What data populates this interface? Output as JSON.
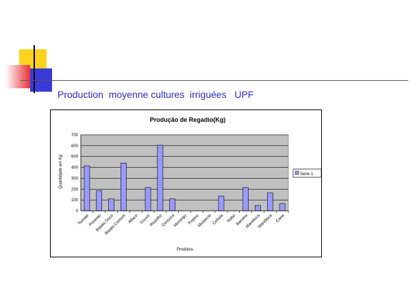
{
  "slide": {
    "title": "Production  moyenne cultures  irriguées   UPF",
    "colors": {
      "title": "#2b2bd0",
      "deco_yellow": "#ffd21f",
      "deco_red": "#e8333a",
      "deco_blue": "#3a3ad8"
    }
  },
  "chart_data": {
    "type": "bar",
    "title": "Produção de Regadio(Kg)",
    "xlabel": "Produtos",
    "ylabel": "Quantidade em Kg",
    "ylim": [
      0,
      700
    ],
    "yticks": [
      0,
      100,
      200,
      300,
      400,
      500,
      600,
      700
    ],
    "grid": true,
    "legend_position": "right",
    "plot_background": "#c0c0c0",
    "bar_color": "#9999ff",
    "categories": [
      "Tomate",
      "Pimento",
      "Batata Doce",
      "Batata Comum",
      "Alface",
      "Couve",
      "Repolho",
      "Cenoura",
      "Morango",
      "Pepino",
      "Melancia",
      "Cebola",
      "Nabo",
      "Banana",
      "Mandioca",
      "Mandioca",
      "Cana"
    ],
    "series": [
      {
        "name": "Série 1",
        "values": [
          415,
          185,
          110,
          440,
          0,
          215,
          605,
          110,
          0,
          0,
          0,
          135,
          0,
          215,
          50,
          165,
          65
        ]
      }
    ]
  }
}
